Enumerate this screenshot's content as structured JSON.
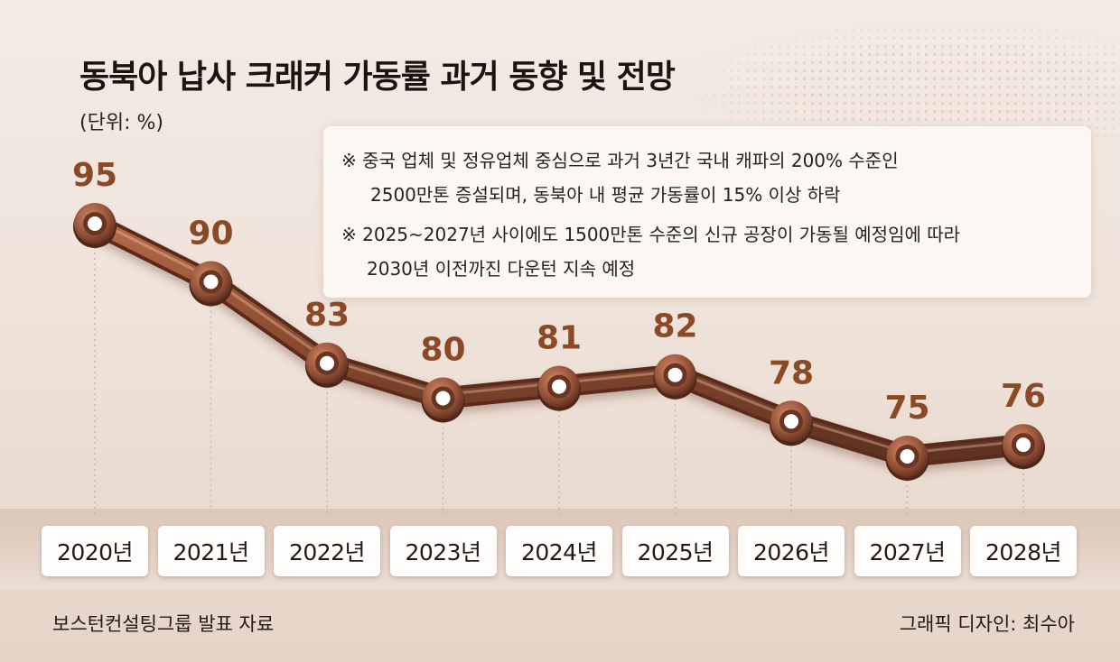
{
  "title": "동북아 납사 크래커 가동률 과거 동향 및 전망",
  "unit": "(단위: %)",
  "notes": [
    "※ 중국 업체 및 정유업체 중심으로 과거 3년간 국내 캐파의 200% 수준인",
    "2500만톤 증설되며, 동북아 내 평균 가동률이 15% 이상 하락",
    "※ 2025~2027년 사이에도 1500만톤 수준의 신규 공장이 가동될 예정임에 따라",
    "2030년 이전까진 다운턴 지속 예정"
  ],
  "source": "보스턴컨설팅그룹 발표 자료",
  "credit": "그래픽 디자인: 최수아",
  "colors": {
    "line": "#8a4c30",
    "label": "#8a4a28",
    "marker_center": "#ffffff"
  },
  "chart_data": {
    "type": "line",
    "categories": [
      "2020년",
      "2021년",
      "2022년",
      "2023년",
      "2024년",
      "2025년",
      "2026년",
      "2027년",
      "2028년"
    ],
    "values": [
      95,
      90,
      83,
      80,
      81,
      82,
      78,
      75,
      76
    ],
    "title": "동북아 납사 크래커 가동률 과거 동향 및 전망",
    "unit": "(단위: %)",
    "xlabel": "",
    "ylabel": "",
    "grid": false,
    "data_labels": true
  }
}
